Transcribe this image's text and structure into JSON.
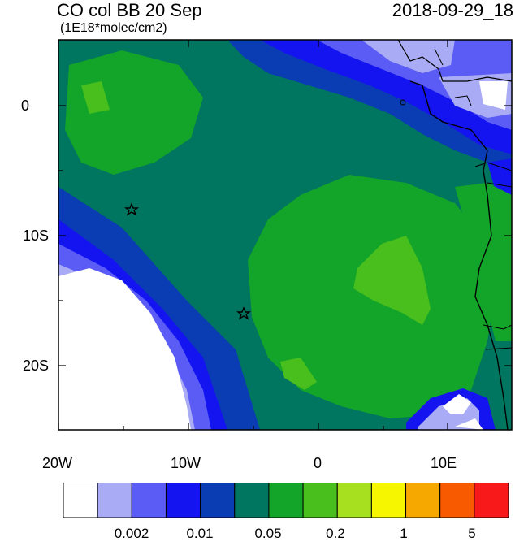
{
  "header": {
    "title": "CO col BB 20 Sep",
    "units": "(1E18*molec/cm2)",
    "timestamp": "2018-09-29_18"
  },
  "axes": {
    "x_ticks": [
      "20W",
      "10W",
      "0",
      "10E"
    ],
    "y_ticks": [
      "0",
      "10S",
      "20S"
    ]
  },
  "colorbar": {
    "colors": [
      "#ffffff",
      "#a9acf5",
      "#5a5cf5",
      "#1414f0",
      "#0a3cb4",
      "#00755f",
      "#13a42a",
      "#48bf1c",
      "#a6e01e",
      "#f6f600",
      "#f7a800",
      "#f85a00",
      "#f81a1a"
    ],
    "labels": [
      "0.002",
      "0.01",
      "0.05",
      "0.2",
      "1",
      "5"
    ]
  },
  "markers": [
    "star",
    "star"
  ]
}
